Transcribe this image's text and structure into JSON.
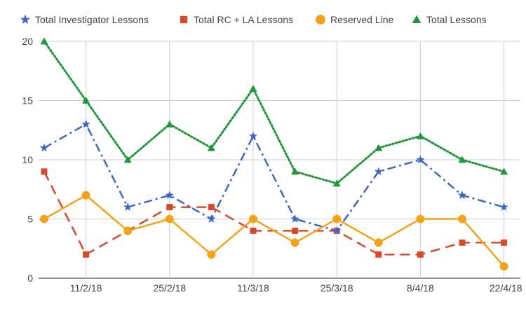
{
  "chart_data": {
    "type": "line",
    "x_tick_labels": [
      "11/2/18",
      "25/2/18",
      "11/3/18",
      "25/3/18",
      "8/4/18",
      "22/4/18"
    ],
    "y_ticks": [
      "0",
      "5",
      "10",
      "15",
      "20"
    ],
    "ylim": [
      0,
      20
    ],
    "grid": true,
    "legend_position": "top",
    "series": [
      {
        "name": "Total Investigator Lessons",
        "color": "#3c69c4",
        "marker": "star",
        "line_style": "dash-dot",
        "values": [
          11,
          13,
          6,
          7,
          5,
          12,
          5,
          4,
          9,
          10,
          7,
          6
        ]
      },
      {
        "name": "Total RC + LA Lessons",
        "color": "#d64a2a",
        "marker": "square",
        "line_style": "dashed",
        "values": [
          9,
          2,
          4,
          6,
          6,
          4,
          4,
          4,
          2,
          2,
          3,
          3
        ]
      },
      {
        "name": "Reserved Line",
        "color": "#f5a21b",
        "marker": "circle",
        "line_style": "solid",
        "values": [
          5,
          7,
          4,
          5,
          2,
          5,
          3,
          5,
          3,
          5,
          5,
          1
        ]
      },
      {
        "name": "Total Lessons",
        "color": "#1f9638",
        "marker": "triangle",
        "line_style": "dotted",
        "values": [
          20,
          15,
          10,
          13,
          11,
          16,
          9,
          8,
          11,
          12,
          10,
          9
        ]
      }
    ]
  }
}
